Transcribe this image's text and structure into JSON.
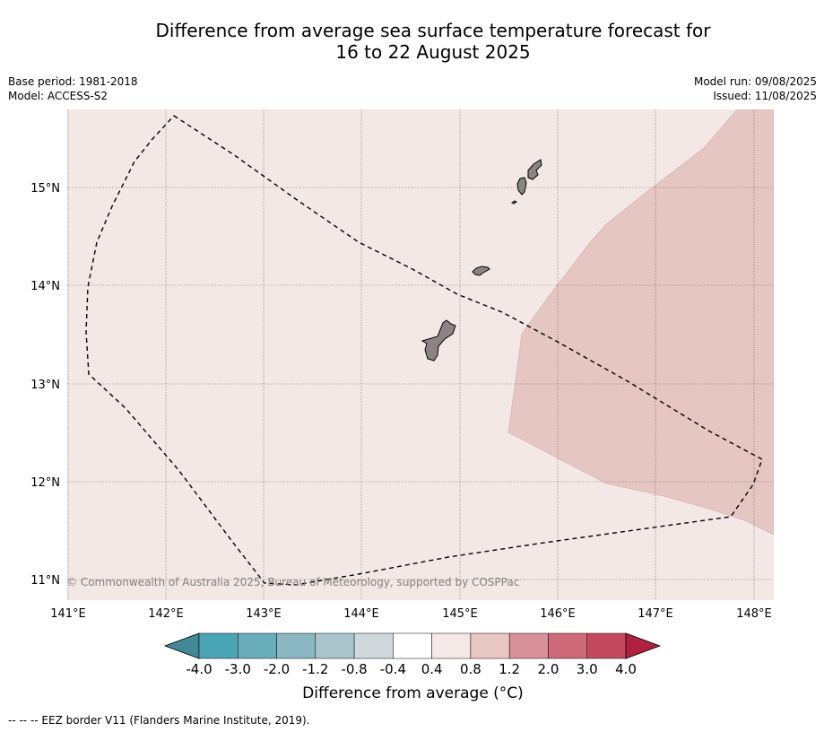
{
  "header": {
    "title_line1": "Difference from average sea surface temperature forecast for",
    "title_line2": "16 to 22 August 2025"
  },
  "meta_left": {
    "base_period": "Base period: 1981-2018",
    "model": "Model: ACCESS-S2"
  },
  "meta_right": {
    "model_run": "Model run: 09/08/2025",
    "issued": "Issued: 11/08/2025"
  },
  "map": {
    "lon_ticks": [
      "141°E",
      "142°E",
      "143°E",
      "144°E",
      "145°E",
      "146°E",
      "147°E",
      "148°E"
    ],
    "lat_ticks": [
      "15°N",
      "14°N",
      "13°N",
      "12°N",
      "11°N"
    ],
    "copyright": "© Commonwealth of Australia 2025, Bureau of Meteorology, supported by COSPPac",
    "ocean_color": "#f4e8e6",
    "warm_zone_color": "#e6c6c2",
    "land_color": "#8c8483"
  },
  "colorbar": {
    "labels": [
      "-4.0",
      "-3.0",
      "-2.0",
      "-1.2",
      "-0.8",
      "-0.4",
      "0.4",
      "0.8",
      "1.2",
      "2.0",
      "3.0",
      "4.0"
    ],
    "colors": [
      "#3f8a96",
      "#4aa5b5",
      "#6aaebc",
      "#8bb7c3",
      "#aac6cc",
      "#cfd8db",
      "#ffffff",
      "#f5e9e7",
      "#e8c7c3",
      "#d8909a",
      "#cf6a78",
      "#c34a5e",
      "#b22040"
    ],
    "label": "Difference from average (°C)"
  },
  "footer": {
    "legend_text": "-- -- -- EEZ border V11 (Flanders Marine Institute, 2019)."
  }
}
